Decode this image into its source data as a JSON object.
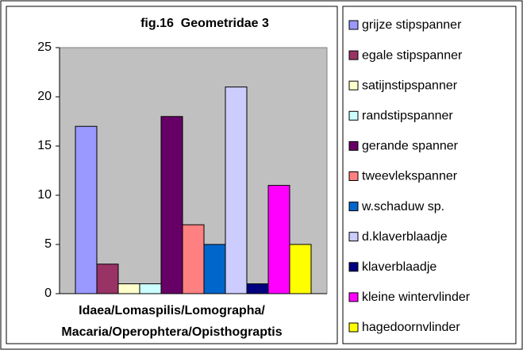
{
  "chart_data": {
    "type": "bar",
    "title": "fig.16  Geometridae 3",
    "categories": [
      "Idaea/Lomaspilis/Lomographa/\nMacaria/Operophtera/Opisthograptis"
    ],
    "series": [
      {
        "name": "grijze stipspanner",
        "color": "#9999ff",
        "values": [
          17
        ]
      },
      {
        "name": "egale stipspanner",
        "color": "#993366",
        "values": [
          3
        ]
      },
      {
        "name": "satijnstipspanner",
        "color": "#ffffcc",
        "values": [
          1
        ]
      },
      {
        "name": "randstipspanner",
        "color": "#ccffff",
        "values": [
          1
        ]
      },
      {
        "name": "gerande spanner",
        "color": "#660066",
        "values": [
          18
        ]
      },
      {
        "name": "tweevlekspanner",
        "color": "#ff8080",
        "values": [
          7
        ]
      },
      {
        "name": "w.schaduw sp.",
        "color": "#0066cc",
        "values": [
          5
        ]
      },
      {
        "name": "d.klaverblaadje",
        "color": "#ccccff",
        "values": [
          21
        ]
      },
      {
        "name": "klaverblaadje",
        "color": "#000080",
        "values": [
          1
        ]
      },
      {
        "name": "kleine wintervlinder",
        "color": "#ff00ff",
        "values": [
          11
        ]
      },
      {
        "name": "hagedoornvlinder",
        "color": "#ffff00",
        "values": [
          5
        ]
      }
    ],
    "ylim": [
      0,
      25
    ],
    "yticks": [
      0,
      5,
      10,
      15,
      20,
      25
    ],
    "legend": "right",
    "plot_background": "#c0c0c0"
  }
}
